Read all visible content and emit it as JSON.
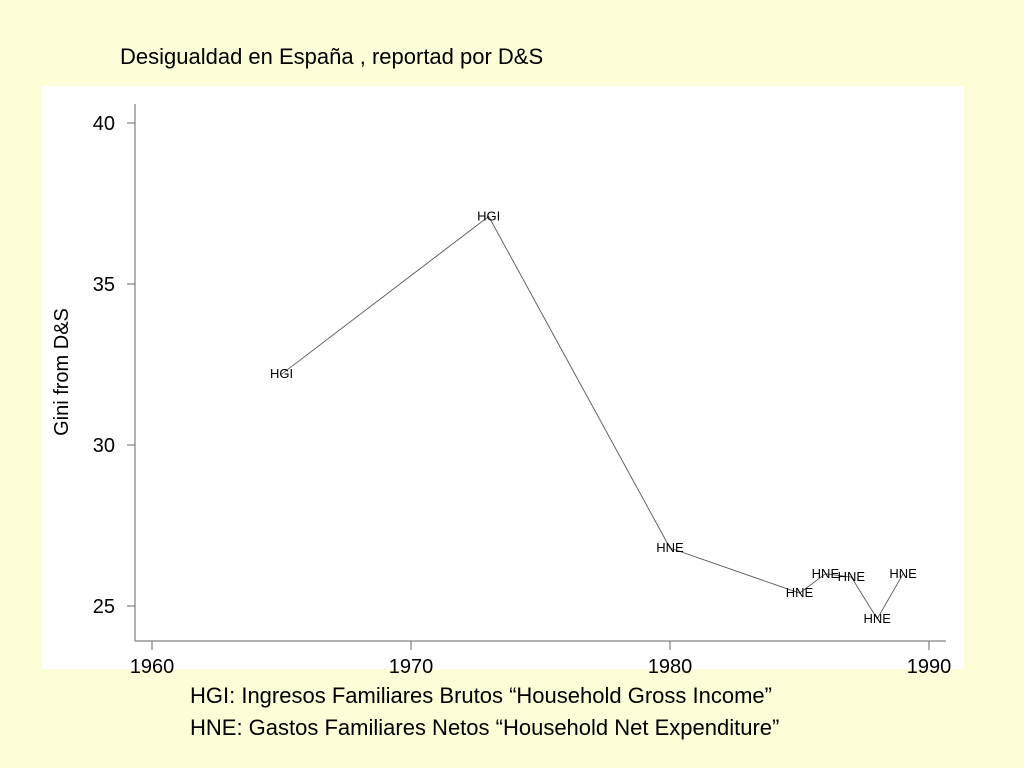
{
  "title": "Desigualdad en España , reportad por D&S",
  "chart_data": {
    "type": "line",
    "x": [
      1965,
      1973,
      1980,
      1985,
      1986,
      1987,
      1988,
      1989
    ],
    "values": [
      32.2,
      37.1,
      26.8,
      25.4,
      26.0,
      25.9,
      24.6,
      26.0
    ],
    "point_labels": [
      "HGI",
      "HGI",
      "HNE",
      "HNE",
      "HNE",
      "HNE",
      "HNE",
      "HNE"
    ],
    "ylabel": "Gini from D&S",
    "xlabel": "",
    "xlim": [
      1960,
      1990
    ],
    "ylim": [
      24,
      40
    ],
    "xticks": [
      1960,
      1970,
      1980,
      1990
    ],
    "yticks": [
      25,
      30,
      35,
      40
    ],
    "grid": false,
    "line_color": "#555555"
  },
  "legend": {
    "line1": "HGI: Ingresos Familiares Brutos “Household Gross Income”",
    "line2": "HNE: Gastos Familiares Netos “Household Net Expenditure”"
  },
  "colors": {
    "background": "#fdfdd8",
    "plot_background": "#ffffff"
  }
}
